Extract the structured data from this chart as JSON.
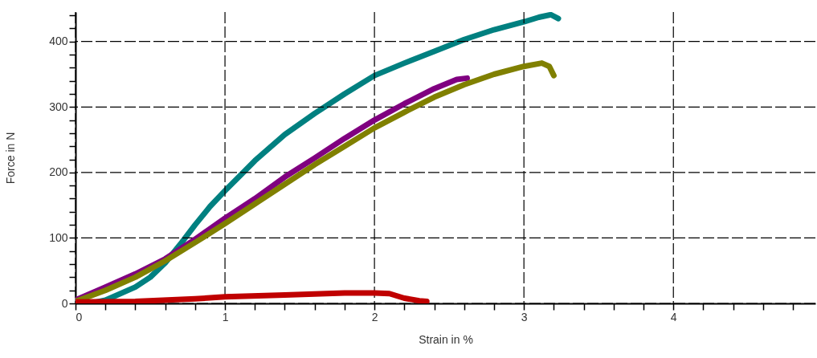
{
  "chart_data": {
    "type": "line",
    "xlabel": "Strain in %",
    "ylabel": "Force in N",
    "xlim": [
      0,
      4.95
    ],
    "ylim": [
      0,
      445
    ],
    "xticks": [
      0,
      {
        "value": 0.2,
        "label": null
      },
      {
        "value": 0.4,
        "label": null
      },
      {
        "value": 0.6,
        "label": null
      },
      {
        "value": 0.8,
        "label": null
      },
      1,
      {
        "value": 1.2,
        "label": null
      },
      {
        "value": 1.4,
        "label": null
      },
      {
        "value": 1.6,
        "label": null
      },
      {
        "value": 1.8,
        "label": null
      },
      2,
      {
        "value": 2.2,
        "label": null
      },
      {
        "value": 2.4,
        "label": null
      },
      {
        "value": 2.6,
        "label": null
      },
      {
        "value": 2.8,
        "label": null
      },
      3,
      {
        "value": 3.2,
        "label": null
      },
      {
        "value": 3.4,
        "label": null
      },
      {
        "value": 3.6,
        "label": null
      },
      {
        "value": 3.8,
        "label": null
      },
      4,
      {
        "value": 4.2,
        "label": null
      },
      {
        "value": 4.4,
        "label": null
      },
      {
        "value": 4.6,
        "label": null
      },
      {
        "value": 4.8,
        "label": null
      }
    ],
    "yticks": [
      0,
      {
        "value": 20,
        "label": null
      },
      {
        "value": 40,
        "label": null
      },
      {
        "value": 60,
        "label": null
      },
      {
        "value": 80,
        "label": null
      },
      100,
      {
        "value": 120,
        "label": null
      },
      {
        "value": 140,
        "label": null
      },
      {
        "value": 160,
        "label": null
      },
      {
        "value": 180,
        "label": null
      },
      200,
      {
        "value": 220,
        "label": null
      },
      {
        "value": 240,
        "label": null
      },
      {
        "value": 260,
        "label": null
      },
      {
        "value": 280,
        "label": null
      },
      300,
      {
        "value": 320,
        "label": null
      },
      {
        "value": 340,
        "label": null
      },
      {
        "value": 360,
        "label": null
      },
      {
        "value": 380,
        "label": null
      },
      400,
      {
        "value": 420,
        "label": null
      },
      {
        "value": 440,
        "label": null
      }
    ],
    "grid": true,
    "line_style": "solid",
    "marker": "none",
    "series": [
      {
        "color": "#008080",
        "x": [
          0.1,
          0.2,
          0.4,
          0.5,
          0.6,
          0.7,
          0.8,
          0.9,
          1.0,
          1.1,
          1.2,
          1.4,
          1.6,
          1.8,
          2.0,
          2.2,
          2.4,
          2.6,
          2.8,
          3.0,
          3.1,
          3.18,
          3.23
        ],
        "values": [
          0,
          5,
          25,
          40,
          62,
          90,
          120,
          148,
          172,
          195,
          218,
          258,
          290,
          320,
          348,
          367,
          385,
          403,
          418,
          430,
          437,
          441,
          435
        ]
      },
      {
        "color": "#800080",
        "x": [
          0,
          0.2,
          0.4,
          0.6,
          0.8,
          1.0,
          1.2,
          1.4,
          1.6,
          1.8,
          2.0,
          2.2,
          2.4,
          2.55,
          2.62
        ],
        "values": [
          5,
          25,
          45,
          68,
          98,
          130,
          160,
          193,
          222,
          252,
          280,
          305,
          328,
          342,
          344
        ]
      },
      {
        "color": "#808000",
        "x": [
          0,
          0.2,
          0.4,
          0.6,
          0.8,
          1.0,
          1.2,
          1.4,
          1.6,
          1.8,
          2.0,
          2.2,
          2.4,
          2.6,
          2.8,
          3.0,
          3.12,
          3.17,
          3.2
        ],
        "values": [
          3,
          20,
          40,
          65,
          93,
          122,
          152,
          182,
          212,
          240,
          268,
          292,
          315,
          334,
          350,
          362,
          367,
          362,
          348
        ]
      },
      {
        "color": "#c00000",
        "x": [
          0,
          0.4,
          0.8,
          1.0,
          1.4,
          1.8,
          2.0,
          2.1,
          2.2,
          2.3,
          2.35
        ],
        "values": [
          2,
          3,
          7,
          10,
          13,
          16,
          16,
          15,
          8,
          4,
          3
        ]
      }
    ]
  }
}
